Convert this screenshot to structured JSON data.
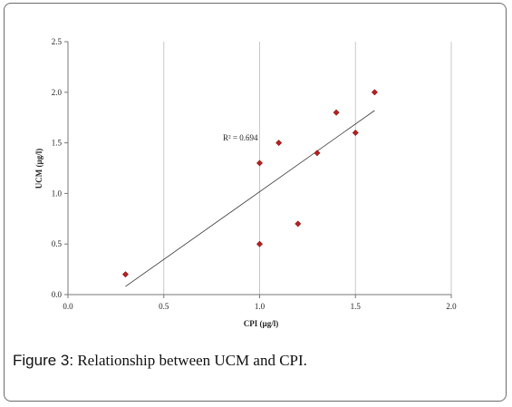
{
  "chart_data": {
    "type": "scatter",
    "xlabel": "CPI (µg/l)",
    "ylabel": "UCM (µg/l)",
    "xlim": [
      0.0,
      2.0
    ],
    "ylim": [
      0.0,
      2.5
    ],
    "x_ticks": [
      "0.0",
      "0.5",
      "1.0",
      "1.5",
      "2.0"
    ],
    "y_ticks": [
      "0.0",
      "0.5",
      "1.0",
      "1.5",
      "2.0",
      "2.5"
    ],
    "grid": "vertical",
    "marker_color": "#b22222",
    "points": [
      {
        "x": 0.3,
        "y": 0.2
      },
      {
        "x": 1.0,
        "y": 0.5
      },
      {
        "x": 1.0,
        "y": 1.3
      },
      {
        "x": 1.1,
        "y": 1.5
      },
      {
        "x": 1.2,
        "y": 0.7
      },
      {
        "x": 1.3,
        "y": 1.4
      },
      {
        "x": 1.4,
        "y": 1.8
      },
      {
        "x": 1.5,
        "y": 1.6
      },
      {
        "x": 1.6,
        "y": 2.0
      }
    ],
    "trendline": {
      "x": [
        0.3,
        1.6
      ],
      "y": [
        0.08,
        1.82
      ]
    },
    "annotation": "R² = 0.694"
  },
  "caption": {
    "label": "Figure 3:",
    "text": " Relationship between UCM and CPI."
  }
}
